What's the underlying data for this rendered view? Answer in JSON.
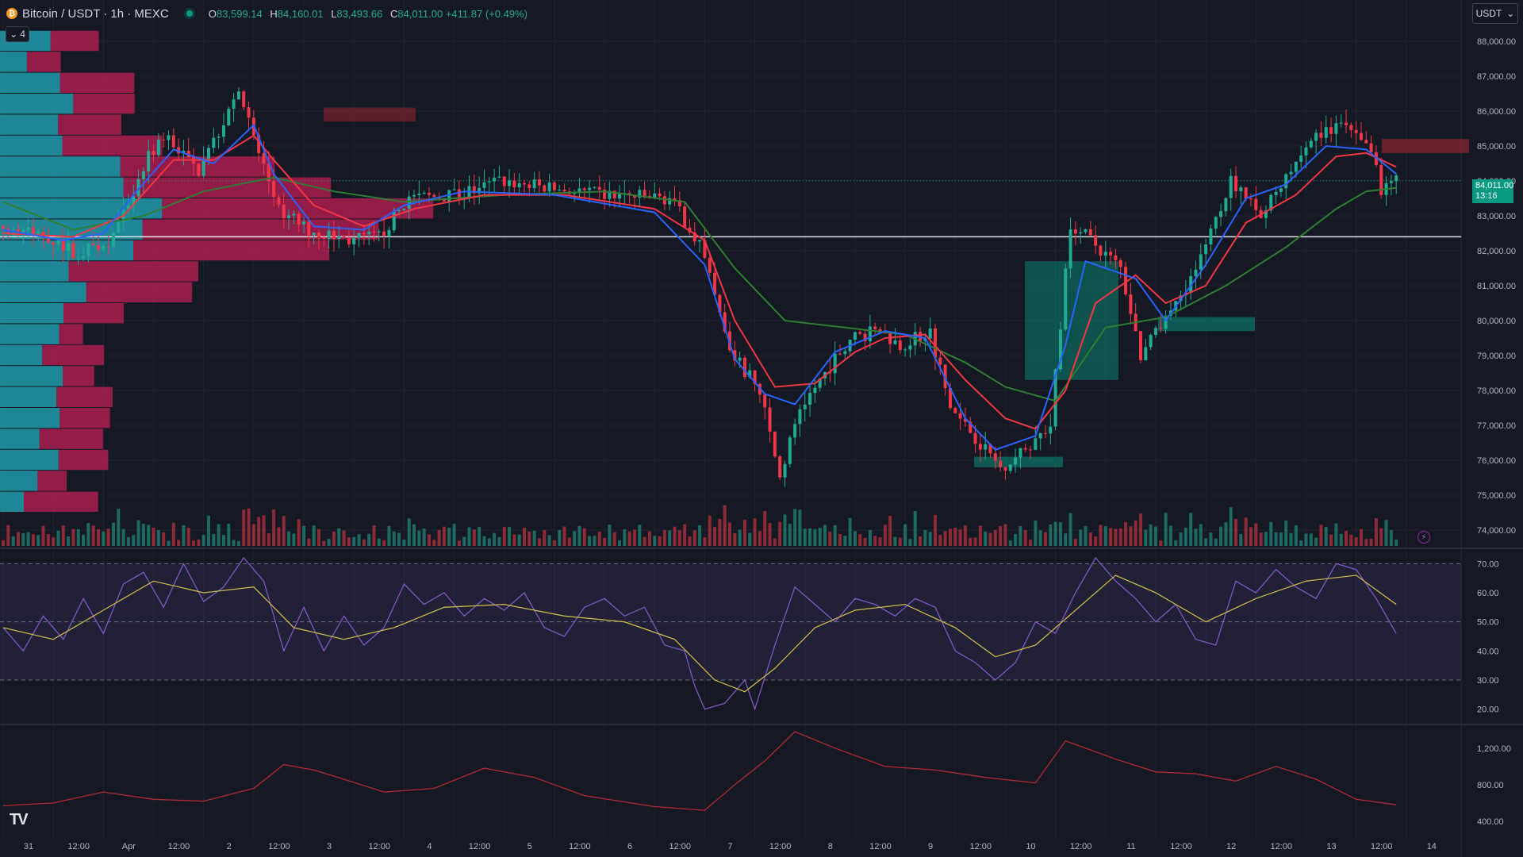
{
  "header": {
    "symbol_title": "Bitcoin / USDT · 1h · MEXC",
    "ohlc": [
      {
        "key": "O",
        "value": "83,599.14"
      },
      {
        "key": "H",
        "value": "84,160.01"
      },
      {
        "key": "L",
        "value": "83,493.66"
      },
      {
        "key": "C",
        "value": "84,011.00"
      }
    ],
    "change": "+411.87 (+0.49%)"
  },
  "indicator_toggle": {
    "count": "4",
    "icon": "chevron-down-icon"
  },
  "currency_button": {
    "label": "USDT",
    "icon": "chevron-down-icon"
  },
  "last_price": {
    "value": "84,011.00",
    "countdown": "13:16"
  },
  "colors": {
    "background": "#151924",
    "up": "#22ab94",
    "down": "#f23645",
    "ema_fast": "#2962ff",
    "ema_mid": "#f23645",
    "ema_slow": "#2e7d32",
    "rsi": "#7e57c2",
    "rsi_ma": "#c9b44a",
    "atr": "#b22833"
  },
  "chart_data": {
    "type": "line",
    "price_axis": {
      "ticks": [
        "88,000.00",
        "87,000.00",
        "86,000.00",
        "85,000.00",
        "84,000.00",
        "83,000.00",
        "82,000.00",
        "81,000.00",
        "80,000.00",
        "79,000.00",
        "78,000.00",
        "77,000.00",
        "76,000.00",
        "75,000.00",
        "74,000.00"
      ],
      "range": [
        73500,
        88500
      ]
    },
    "rsi_axis": {
      "ticks": [
        "70.00",
        "60.00",
        "50.00",
        "40.00",
        "30.00",
        "20.00"
      ],
      "range": [
        15,
        75
      ],
      "bands": [
        30,
        50,
        70
      ]
    },
    "atr_axis": {
      "ticks": [
        "1,200.00",
        "800.00",
        "400.00"
      ],
      "range": [
        200,
        1450
      ]
    },
    "time_axis": {
      "ticks": [
        "31",
        "12:00",
        "Apr",
        "12:00",
        "2",
        "12:00",
        "3",
        "12:00",
        "4",
        "12:00",
        "5",
        "12:00",
        "6",
        "12:00",
        "7",
        "12:00",
        "8",
        "12:00",
        "9",
        "12:00",
        "10",
        "12:00",
        "11",
        "12:00",
        "12",
        "12:00",
        "13",
        "12:00",
        "14"
      ]
    },
    "price_path": [
      [
        0,
        82700
      ],
      [
        10,
        82400
      ],
      [
        16,
        81900
      ],
      [
        22,
        82300
      ],
      [
        26,
        83200
      ],
      [
        30,
        84800
      ],
      [
        34,
        85200
      ],
      [
        40,
        84300
      ],
      [
        48,
        86600
      ],
      [
        52,
        84800
      ],
      [
        56,
        83200
      ],
      [
        62,
        82600
      ],
      [
        70,
        82300
      ],
      [
        76,
        82400
      ],
      [
        82,
        83500
      ],
      [
        92,
        83600
      ],
      [
        100,
        84000
      ],
      [
        110,
        83800
      ],
      [
        120,
        83600
      ],
      [
        134,
        83500
      ],
      [
        140,
        82200
      ],
      [
        146,
        79100
      ],
      [
        152,
        78000
      ],
      [
        156,
        75500
      ],
      [
        160,
        77500
      ],
      [
        170,
        79500
      ],
      [
        176,
        79700
      ],
      [
        180,
        79300
      ],
      [
        186,
        79700
      ],
      [
        190,
        77500
      ],
      [
        196,
        76500
      ],
      [
        200,
        75800
      ],
      [
        204,
        76200
      ],
      [
        210,
        77000
      ],
      [
        214,
        82800
      ],
      [
        218,
        82300
      ],
      [
        224,
        81500
      ],
      [
        228,
        79000
      ],
      [
        234,
        80200
      ],
      [
        240,
        81800
      ],
      [
        246,
        84000
      ],
      [
        252,
        83000
      ],
      [
        258,
        84300
      ],
      [
        262,
        85200
      ],
      [
        268,
        85600
      ],
      [
        274,
        84800
      ],
      [
        276,
        83800
      ],
      [
        278,
        84011
      ]
    ],
    "ema_fast": [
      [
        0,
        82600
      ],
      [
        12,
        82300
      ],
      [
        20,
        82500
      ],
      [
        26,
        83600
      ],
      [
        34,
        84900
      ],
      [
        42,
        84500
      ],
      [
        50,
        85600
      ],
      [
        54,
        84200
      ],
      [
        62,
        82700
      ],
      [
        72,
        82600
      ],
      [
        80,
        83300
      ],
      [
        92,
        83700
      ],
      [
        110,
        83600
      ],
      [
        130,
        83100
      ],
      [
        140,
        81600
      ],
      [
        146,
        78900
      ],
      [
        152,
        77900
      ],
      [
        158,
        77600
      ],
      [
        166,
        79100
      ],
      [
        176,
        79700
      ],
      [
        184,
        79500
      ],
      [
        192,
        77200
      ],
      [
        198,
        76300
      ],
      [
        206,
        76700
      ],
      [
        212,
        79300
      ],
      [
        216,
        81700
      ],
      [
        226,
        81200
      ],
      [
        232,
        80000
      ],
      [
        240,
        81600
      ],
      [
        248,
        83500
      ],
      [
        256,
        83900
      ],
      [
        264,
        85000
      ],
      [
        272,
        84900
      ],
      [
        278,
        84200
      ]
    ],
    "ema_mid": [
      [
        0,
        82500
      ],
      [
        14,
        82400
      ],
      [
        24,
        83000
      ],
      [
        34,
        84600
      ],
      [
        42,
        84600
      ],
      [
        50,
        85300
      ],
      [
        54,
        84600
      ],
      [
        62,
        83300
      ],
      [
        72,
        82700
      ],
      [
        82,
        83200
      ],
      [
        96,
        83600
      ],
      [
        112,
        83600
      ],
      [
        130,
        83200
      ],
      [
        140,
        82300
      ],
      [
        146,
        80000
      ],
      [
        154,
        78100
      ],
      [
        162,
        78200
      ],
      [
        170,
        79100
      ],
      [
        176,
        79500
      ],
      [
        184,
        79600
      ],
      [
        192,
        78300
      ],
      [
        200,
        77200
      ],
      [
        206,
        76900
      ],
      [
        212,
        78000
      ],
      [
        218,
        80500
      ],
      [
        226,
        81300
      ],
      [
        232,
        80500
      ],
      [
        240,
        81000
      ],
      [
        248,
        82800
      ],
      [
        258,
        83600
      ],
      [
        266,
        84700
      ],
      [
        272,
        84800
      ],
      [
        278,
        84400
      ]
    ],
    "ema_slow": [
      [
        0,
        83400
      ],
      [
        14,
        82600
      ],
      [
        28,
        83000
      ],
      [
        40,
        83700
      ],
      [
        54,
        84100
      ],
      [
        66,
        83700
      ],
      [
        80,
        83400
      ],
      [
        100,
        83600
      ],
      [
        120,
        83700
      ],
      [
        136,
        83400
      ],
      [
        146,
        81500
      ],
      [
        156,
        80000
      ],
      [
        168,
        79800
      ],
      [
        180,
        79600
      ],
      [
        192,
        78800
      ],
      [
        200,
        78100
      ],
      [
        210,
        77700
      ],
      [
        220,
        79800
      ],
      [
        232,
        80100
      ],
      [
        244,
        81000
      ],
      [
        256,
        82100
      ],
      [
        266,
        83200
      ],
      [
        272,
        83700
      ],
      [
        278,
        83800
      ]
    ],
    "rsi": [
      [
        0,
        48
      ],
      [
        4,
        40
      ],
      [
        8,
        52
      ],
      [
        12,
        44
      ],
      [
        16,
        58
      ],
      [
        20,
        46
      ],
      [
        24,
        63
      ],
      [
        28,
        67
      ],
      [
        32,
        55
      ],
      [
        36,
        70
      ],
      [
        40,
        57
      ],
      [
        44,
        62
      ],
      [
        48,
        72
      ],
      [
        52,
        64
      ],
      [
        56,
        40
      ],
      [
        60,
        55
      ],
      [
        64,
        40
      ],
      [
        68,
        52
      ],
      [
        72,
        42
      ],
      [
        76,
        48
      ],
      [
        80,
        63
      ],
      [
        84,
        56
      ],
      [
        88,
        60
      ],
      [
        92,
        52
      ],
      [
        96,
        58
      ],
      [
        100,
        54
      ],
      [
        104,
        60
      ],
      [
        108,
        48
      ],
      [
        112,
        45
      ],
      [
        116,
        55
      ],
      [
        120,
        58
      ],
      [
        124,
        52
      ],
      [
        128,
        55
      ],
      [
        132,
        42
      ],
      [
        136,
        40
      ],
      [
        138,
        28
      ],
      [
        140,
        20
      ],
      [
        144,
        22
      ],
      [
        148,
        30
      ],
      [
        150,
        20
      ],
      [
        154,
        42
      ],
      [
        158,
        62
      ],
      [
        162,
        56
      ],
      [
        166,
        50
      ],
      [
        170,
        58
      ],
      [
        174,
        56
      ],
      [
        178,
        52
      ],
      [
        182,
        58
      ],
      [
        186,
        55
      ],
      [
        190,
        40
      ],
      [
        194,
        36
      ],
      [
        198,
        30
      ],
      [
        202,
        36
      ],
      [
        206,
        50
      ],
      [
        210,
        46
      ],
      [
        214,
        60
      ],
      [
        218,
        72
      ],
      [
        222,
        64
      ],
      [
        226,
        58
      ],
      [
        230,
        50
      ],
      [
        234,
        56
      ],
      [
        238,
        44
      ],
      [
        242,
        42
      ],
      [
        246,
        64
      ],
      [
        250,
        60
      ],
      [
        254,
        68
      ],
      [
        258,
        62
      ],
      [
        262,
        58
      ],
      [
        266,
        70
      ],
      [
        270,
        68
      ],
      [
        274,
        58
      ],
      [
        278,
        46
      ]
    ],
    "rsi_ma": [
      [
        0,
        48
      ],
      [
        10,
        44
      ],
      [
        20,
        54
      ],
      [
        30,
        64
      ],
      [
        40,
        60
      ],
      [
        50,
        62
      ],
      [
        58,
        48
      ],
      [
        68,
        44
      ],
      [
        78,
        48
      ],
      [
        88,
        55
      ],
      [
        100,
        56
      ],
      [
        112,
        52
      ],
      [
        124,
        50
      ],
      [
        134,
        44
      ],
      [
        142,
        30
      ],
      [
        148,
        26
      ],
      [
        154,
        34
      ],
      [
        162,
        48
      ],
      [
        170,
        54
      ],
      [
        180,
        56
      ],
      [
        190,
        48
      ],
      [
        198,
        38
      ],
      [
        206,
        42
      ],
      [
        214,
        54
      ],
      [
        222,
        66
      ],
      [
        230,
        60
      ],
      [
        240,
        50
      ],
      [
        250,
        58
      ],
      [
        260,
        64
      ],
      [
        270,
        66
      ],
      [
        278,
        56
      ]
    ],
    "atr": [
      [
        0,
        570
      ],
      [
        10,
        600
      ],
      [
        20,
        720
      ],
      [
        30,
        640
      ],
      [
        40,
        620
      ],
      [
        50,
        760
      ],
      [
        56,
        1020
      ],
      [
        62,
        960
      ],
      [
        68,
        860
      ],
      [
        76,
        720
      ],
      [
        86,
        760
      ],
      [
        96,
        980
      ],
      [
        106,
        880
      ],
      [
        116,
        680
      ],
      [
        130,
        560
      ],
      [
        140,
        520
      ],
      [
        146,
        800
      ],
      [
        152,
        1060
      ],
      [
        158,
        1380
      ],
      [
        166,
        1200
      ],
      [
        176,
        1000
      ],
      [
        186,
        960
      ],
      [
        196,
        880
      ],
      [
        206,
        820
      ],
      [
        212,
        1280
      ],
      [
        222,
        1080
      ],
      [
        230,
        940
      ],
      [
        238,
        920
      ],
      [
        246,
        840
      ],
      [
        254,
        1000
      ],
      [
        262,
        860
      ],
      [
        270,
        640
      ],
      [
        278,
        580
      ]
    ]
  }
}
